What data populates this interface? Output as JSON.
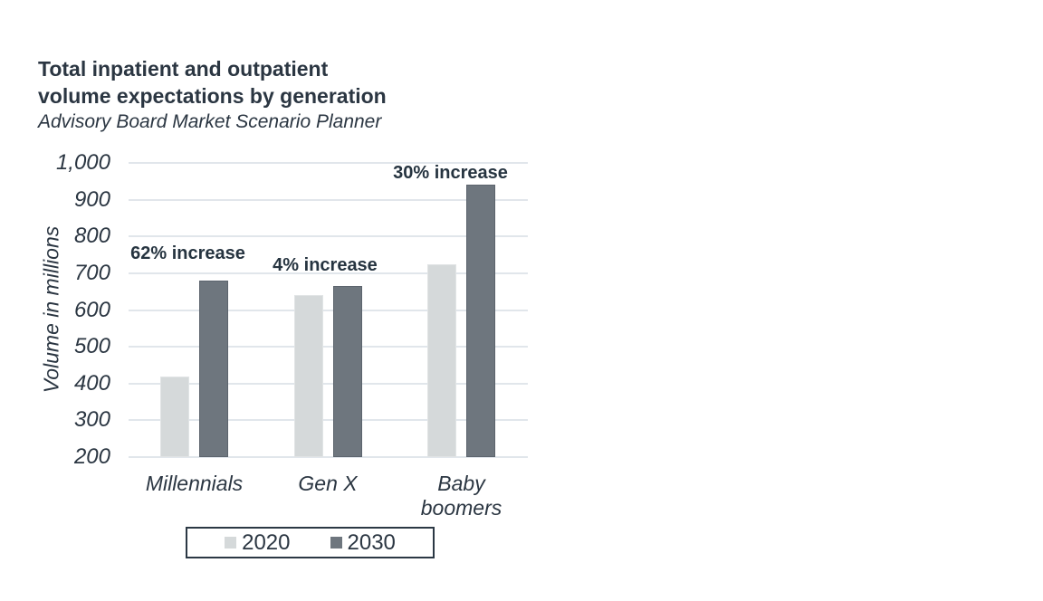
{
  "chart_data": {
    "type": "bar",
    "title": "Total inpatient and outpatient\nvolume expectations by generation",
    "subtitle": "Advisory Board Market Scenario Planner",
    "ylabel": "Volume in millions",
    "xlabel": "",
    "ylim": [
      200,
      1000
    ],
    "ytick_step": 100,
    "ytick_labels": [
      "200",
      "300",
      "400",
      "500",
      "600",
      "700",
      "800",
      "900",
      "1,000"
    ],
    "categories": [
      "Millennials",
      "Gen X",
      "Baby\nboomers"
    ],
    "series": [
      {
        "name": "2020",
        "color": "#d5d9da",
        "border_color": "#e1e4e5",
        "values": [
          420,
          640,
          725
        ]
      },
      {
        "name": "2030",
        "color": "#6e767e",
        "border_color": "#5c646d",
        "values": [
          680,
          666,
          940
        ]
      }
    ],
    "annotations": [
      {
        "text": "62% increase",
        "category": "Millennials",
        "at_value": 780
      },
      {
        "text": "4% increase",
        "category": "Gen X",
        "at_value": 750
      },
      {
        "text": "30% increase",
        "category": "Baby boomers",
        "at_value": 1000
      }
    ],
    "grid": true,
    "gridline_color": "#e1e6eb",
    "text_color": "#2b3642",
    "legend_position": "bottom",
    "legend_border_color": "#2b3844"
  }
}
